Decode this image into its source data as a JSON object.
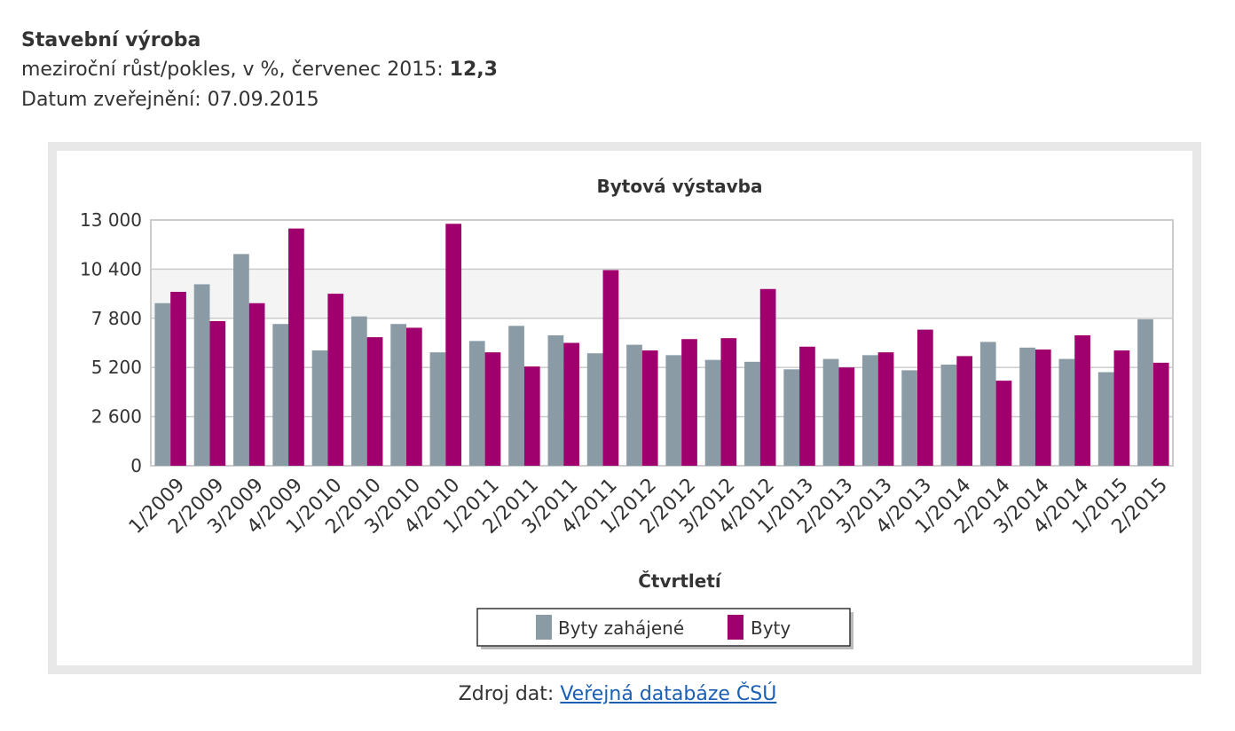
{
  "header": {
    "title": "Stavební výroba",
    "subtitle_prefix": "meziroční růst/pokles, v %, červenec 2015: ",
    "subtitle_value": "12,3",
    "date_line": "Datum zveřejnění: 07.09.2015"
  },
  "source": {
    "label": "Zdroj dat: ",
    "link_text": "Veřejná databáze ČSÚ"
  },
  "colors": {
    "series1": "#8a9ba6",
    "series2": "#a0006e",
    "grid": "#cccccc",
    "band": "#f4f4f4"
  },
  "chart_data": {
    "type": "bar",
    "title": "Bytová výstavba",
    "xlabel": "Čtvrtletí",
    "ylabel": "",
    "ylim": [
      0,
      13000
    ],
    "yticks": [
      0,
      2600,
      5200,
      7800,
      10400,
      13000
    ],
    "ytick_labels": [
      "0",
      "2 600",
      "5 200",
      "7 800",
      "10 400",
      "13 000"
    ],
    "legend_position": "bottom",
    "categories": [
      "1/2009",
      "2/2009",
      "3/2009",
      "4/2009",
      "1/2010",
      "2/2010",
      "3/2010",
      "4/2010",
      "1/2011",
      "2/2011",
      "3/2011",
      "4/2011",
      "1/2012",
      "2/2012",
      "3/2012",
      "4/2012",
      "1/2013",
      "2/2013",
      "3/2013",
      "4/2013",
      "1/2014",
      "2/2014",
      "3/2014",
      "4/2014",
      "1/2015",
      "2/2015"
    ],
    "series": [
      {
        "name": "Byty zahájené",
        "values": [
          8600,
          9600,
          11200,
          7500,
          6100,
          7900,
          7500,
          6000,
          6600,
          7400,
          6900,
          5950,
          6400,
          5850,
          5600,
          5500,
          5100,
          5650,
          5850,
          5050,
          5350,
          6550,
          6250,
          5650,
          4950,
          7750
        ]
      },
      {
        "name": "Byty",
        "values": [
          9200,
          7650,
          8600,
          12550,
          9100,
          6800,
          7300,
          12800,
          6000,
          5250,
          6500,
          10350,
          6100,
          6700,
          6750,
          9350,
          6300,
          5200,
          6000,
          7200,
          5800,
          4500,
          6150,
          6900,
          6100,
          5450
        ]
      }
    ]
  }
}
